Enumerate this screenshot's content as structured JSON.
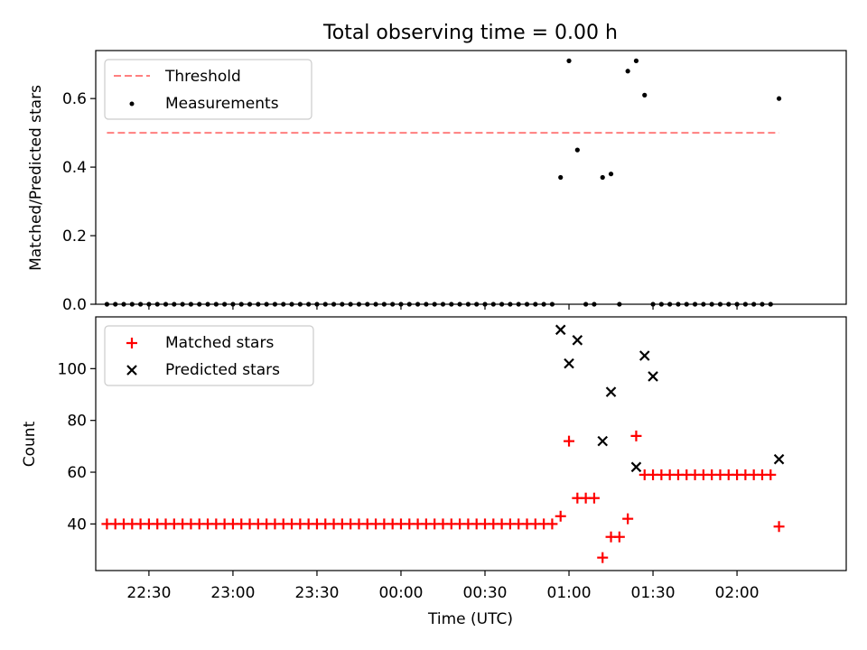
{
  "figure": {
    "title": "Total observing time = 0.00 h"
  },
  "chart_data": [
    {
      "type": "scatter",
      "panel": "top",
      "ylabel": "Matched/Predicted stars",
      "xlabel": "",
      "ylim": [
        0,
        0.74
      ],
      "xlim": [
        "22:11",
        "02:39"
      ],
      "y_ticks": [
        0,
        0.2,
        0.4,
        0.6
      ],
      "y_tick_labels": [
        "0.0",
        "0.2",
        "0.4",
        "0.6"
      ],
      "grid": false,
      "legend_position": "upper-left",
      "threshold": {
        "name": "Threshold",
        "value": 0.5,
        "x_start": "22:15",
        "x_end": "02:15",
        "color": "#ff7f7f"
      },
      "series": [
        {
          "name": "Measurements",
          "marker": "dot",
          "color": "#000000",
          "x": [
            "22:15",
            "22:18",
            "22:21",
            "22:24",
            "22:27",
            "22:30",
            "22:33",
            "22:36",
            "22:39",
            "22:42",
            "22:45",
            "22:48",
            "22:51",
            "22:54",
            "22:57",
            "23:00",
            "23:03",
            "23:06",
            "23:09",
            "23:12",
            "23:15",
            "23:18",
            "23:21",
            "23:24",
            "23:27",
            "23:30",
            "23:33",
            "23:36",
            "23:39",
            "23:42",
            "23:45",
            "23:48",
            "23:51",
            "23:54",
            "23:57",
            "00:00",
            "00:03",
            "00:06",
            "00:09",
            "00:12",
            "00:15",
            "00:18",
            "00:21",
            "00:24",
            "00:27",
            "00:30",
            "00:33",
            "00:36",
            "00:39",
            "00:42",
            "00:45",
            "00:48",
            "00:51",
            "00:54",
            "00:57",
            "01:00",
            "01:03",
            "01:06",
            "01:09",
            "01:12",
            "01:15",
            "01:18",
            "01:21",
            "01:24",
            "01:27",
            "01:30",
            "01:33",
            "01:36",
            "01:39",
            "01:42",
            "01:45",
            "01:48",
            "01:51",
            "01:54",
            "01:57",
            "02:00",
            "02:03",
            "02:06",
            "02:09",
            "02:12",
            "02:15"
          ],
          "y": [
            0,
            0,
            0,
            0,
            0,
            0,
            0,
            0,
            0,
            0,
            0,
            0,
            0,
            0,
            0,
            0,
            0,
            0,
            0,
            0,
            0,
            0,
            0,
            0,
            0,
            0,
            0,
            0,
            0,
            0,
            0,
            0,
            0,
            0,
            0,
            0,
            0,
            0,
            0,
            0,
            0,
            0,
            0,
            0,
            0,
            0,
            0,
            0,
            0,
            0,
            0,
            0,
            0,
            0,
            0.37,
            0.71,
            0.45,
            0,
            0,
            0.37,
            0.38,
            0,
            0.68,
            0.71,
            0.61,
            0,
            0,
            0,
            0,
            0,
            0,
            0,
            0,
            0,
            0,
            0,
            0,
            0,
            0,
            0,
            0.6
          ]
        }
      ]
    },
    {
      "type": "scatter",
      "panel": "bottom",
      "ylabel": "Count",
      "xlabel": "Time (UTC)",
      "ylim": [
        22,
        120
      ],
      "xlim": [
        "22:11",
        "02:39"
      ],
      "y_ticks": [
        40,
        60,
        80,
        100
      ],
      "y_tick_labels": [
        "40",
        "60",
        "80",
        "100"
      ],
      "x_ticks": [
        "22:30",
        "23:00",
        "23:30",
        "00:00",
        "00:30",
        "01:00",
        "01:30",
        "02:00"
      ],
      "x_tick_labels": [
        "22:30",
        "23:00",
        "23:30",
        "00:00",
        "00:30",
        "01:00",
        "01:30",
        "02:00"
      ],
      "grid": false,
      "legend_position": "upper-left",
      "series": [
        {
          "name": "Matched stars",
          "marker": "plus",
          "color": "#ff0000",
          "x": [
            "22:15",
            "22:18",
            "22:21",
            "22:24",
            "22:27",
            "22:30",
            "22:33",
            "22:36",
            "22:39",
            "22:42",
            "22:45",
            "22:48",
            "22:51",
            "22:54",
            "22:57",
            "23:00",
            "23:03",
            "23:06",
            "23:09",
            "23:12",
            "23:15",
            "23:18",
            "23:21",
            "23:24",
            "23:27",
            "23:30",
            "23:33",
            "23:36",
            "23:39",
            "23:42",
            "23:45",
            "23:48",
            "23:51",
            "23:54",
            "23:57",
            "00:00",
            "00:03",
            "00:06",
            "00:09",
            "00:12",
            "00:15",
            "00:18",
            "00:21",
            "00:24",
            "00:27",
            "00:30",
            "00:33",
            "00:36",
            "00:39",
            "00:42",
            "00:45",
            "00:48",
            "00:51",
            "00:54",
            "00:57",
            "01:00",
            "01:03",
            "01:06",
            "01:09",
            "01:12",
            "01:15",
            "01:18",
            "01:21",
            "01:24",
            "01:27",
            "01:30",
            "01:33",
            "01:36",
            "01:39",
            "01:42",
            "01:45",
            "01:48",
            "01:51",
            "01:54",
            "01:57",
            "02:00",
            "02:03",
            "02:06",
            "02:09",
            "02:12",
            "02:15"
          ],
          "y": [
            40,
            40,
            40,
            40,
            40,
            40,
            40,
            40,
            40,
            40,
            40,
            40,
            40,
            40,
            40,
            40,
            40,
            40,
            40,
            40,
            40,
            40,
            40,
            40,
            40,
            40,
            40,
            40,
            40,
            40,
            40,
            40,
            40,
            40,
            40,
            40,
            40,
            40,
            40,
            40,
            40,
            40,
            40,
            40,
            40,
            40,
            40,
            40,
            40,
            40,
            40,
            40,
            40,
            40,
            43,
            72,
            50,
            50,
            50,
            27,
            35,
            35,
            42,
            74,
            59,
            59,
            59,
            59,
            59,
            59,
            59,
            59,
            59,
            59,
            59,
            59,
            59,
            59,
            59,
            59,
            39
          ]
        },
        {
          "name": "Predicted stars",
          "marker": "x",
          "color": "#000000",
          "x": [
            "00:57",
            "01:00",
            "01:03",
            "01:12",
            "01:15",
            "01:24",
            "01:27",
            "01:30",
            "02:15"
          ],
          "y": [
            115,
            102,
            111,
            72,
            91,
            62,
            105,
            97,
            65
          ]
        }
      ]
    }
  ]
}
